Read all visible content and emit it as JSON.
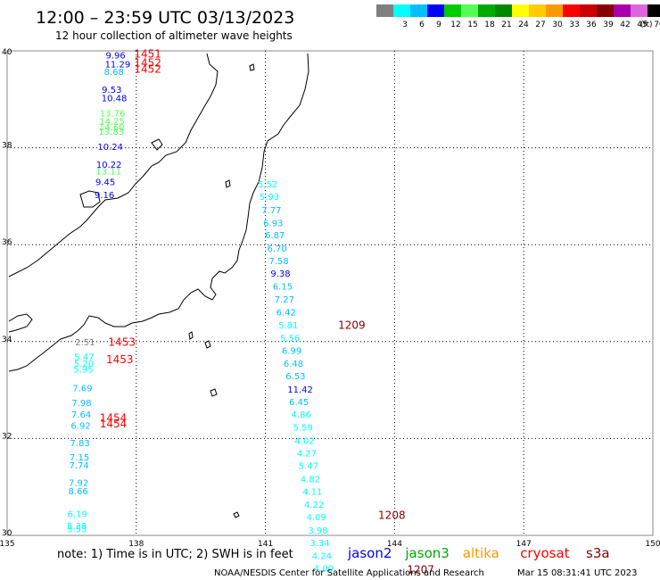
{
  "title": "12:00 – 23:59 UTC 03/13/2023",
  "subtitle": "12 hour collection of altimeter wave heights",
  "legend": {
    "unit": "(ft)",
    "bins": [
      {
        "label": "",
        "color": "#808080"
      },
      {
        "label": "3",
        "color": "#00ffff"
      },
      {
        "label": "6",
        "color": "#00bfff"
      },
      {
        "label": "9",
        "color": "#0000ff"
      },
      {
        "label": "12",
        "color": "#00cc00"
      },
      {
        "label": "15",
        "color": "#55ff55"
      },
      {
        "label": "18",
        "color": "#00aa00"
      },
      {
        "label": "21",
        "color": "#008800"
      },
      {
        "label": "24",
        "color": "#ffff00"
      },
      {
        "label": "27",
        "color": "#ffcc00"
      },
      {
        "label": "30",
        "color": "#ff9900"
      },
      {
        "label": "33",
        "color": "#ff0000"
      },
      {
        "label": "36",
        "color": "#cc0000"
      },
      {
        "label": "39",
        "color": "#880000"
      },
      {
        "label": "42",
        "color": "#aa00aa"
      },
      {
        "label": "45",
        "color": "#dd66dd"
      },
      {
        "label": "70",
        "color": "#000000"
      }
    ]
  },
  "axes": {
    "lon_labels": [
      "135",
      "138",
      "141",
      "144",
      "147",
      "150"
    ],
    "lat_labels": [
      "40",
      "38",
      "36",
      "34",
      "32",
      "30"
    ]
  },
  "observations": [
    {
      "lon": 137.29,
      "lat": 39.84,
      "swh": "9.96",
      "color": "#0000ff"
    },
    {
      "lon": 137.27,
      "lat": 39.66,
      "swh": "11.29",
      "color": "#0000ff"
    },
    {
      "lon": 137.25,
      "lat": 39.5,
      "swh": "8.68",
      "color": "#00bfff"
    },
    {
      "lon": 137.2,
      "lat": 39.13,
      "swh": "9.53",
      "color": "#0000ff"
    },
    {
      "lon": 137.19,
      "lat": 38.96,
      "swh": "10.48",
      "color": "#0000ff"
    },
    {
      "lon": 137.15,
      "lat": 38.65,
      "swh": "13.76",
      "color": "#55ff55"
    },
    {
      "lon": 137.14,
      "lat": 38.48,
      "swh": "14.25",
      "color": "#55ff55"
    },
    {
      "lon": 137.13,
      "lat": 38.36,
      "swh": "14.60",
      "color": "#55ff55"
    },
    {
      "lon": 137.12,
      "lat": 38.27,
      "swh": "13.83",
      "color": "#55ff55"
    },
    {
      "lon": 137.1,
      "lat": 37.96,
      "swh": "10.24",
      "color": "#0000ff"
    },
    {
      "lon": 137.07,
      "lat": 37.59,
      "swh": "10.22",
      "color": "#0000ff"
    },
    {
      "lon": 137.06,
      "lat": 37.45,
      "swh": "13.11",
      "color": "#55ff55"
    },
    {
      "lon": 137.05,
      "lat": 37.23,
      "swh": "9.45",
      "color": "#0000ff"
    },
    {
      "lon": 137.03,
      "lat": 36.96,
      "swh": "9.16",
      "color": "#0000ff"
    },
    {
      "lon": 140.82,
      "lat": 37.18,
      "swh": "5.52",
      "color": "#00ffff"
    },
    {
      "lon": 140.86,
      "lat": 36.92,
      "swh": "5.93",
      "color": "#00ffff"
    },
    {
      "lon": 140.91,
      "lat": 36.65,
      "swh": "7.77",
      "color": "#00bfff"
    },
    {
      "lon": 140.95,
      "lat": 36.38,
      "swh": "6.93",
      "color": "#00bfff"
    },
    {
      "lon": 140.99,
      "lat": 36.13,
      "swh": "6.87",
      "color": "#00bfff"
    },
    {
      "lon": 141.04,
      "lat": 35.86,
      "swh": "6.70",
      "color": "#00bfff"
    },
    {
      "lon": 141.08,
      "lat": 35.6,
      "swh": "7.58",
      "color": "#00bfff"
    },
    {
      "lon": 141.12,
      "lat": 35.34,
      "swh": "9.38",
      "color": "#0000ff"
    },
    {
      "lon": 141.17,
      "lat": 35.07,
      "swh": "6.15",
      "color": "#00bfff"
    },
    {
      "lon": 141.21,
      "lat": 34.81,
      "swh": "7.27",
      "color": "#00bfff"
    },
    {
      "lon": 141.25,
      "lat": 34.54,
      "swh": "6.42",
      "color": "#00bfff"
    },
    {
      "lon": 141.3,
      "lat": 34.27,
      "swh": "5.81",
      "color": "#00ffff"
    },
    {
      "lon": 141.34,
      "lat": 34.01,
      "swh": "5.56",
      "color": "#00ffff"
    },
    {
      "lon": 141.38,
      "lat": 33.75,
      "swh": "6.99",
      "color": "#00bfff"
    },
    {
      "lon": 141.42,
      "lat": 33.48,
      "swh": "6.48",
      "color": "#00bfff"
    },
    {
      "lon": 141.47,
      "lat": 33.22,
      "swh": "6.53",
      "color": "#00bfff"
    },
    {
      "lon": 141.51,
      "lat": 32.95,
      "swh": "11.42",
      "color": "#0000ff"
    },
    {
      "lon": 141.55,
      "lat": 32.69,
      "swh": "6.45",
      "color": "#00bfff"
    },
    {
      "lon": 141.6,
      "lat": 32.43,
      "swh": "4.86",
      "color": "#00ffff"
    },
    {
      "lon": 141.64,
      "lat": 32.16,
      "swh": "5.59",
      "color": "#00ffff"
    },
    {
      "lon": 141.68,
      "lat": 31.89,
      "swh": "4.02",
      "color": "#00ffff"
    },
    {
      "lon": 141.73,
      "lat": 31.63,
      "swh": "4.27",
      "color": "#00ffff"
    },
    {
      "lon": 141.77,
      "lat": 31.37,
      "swh": "5.47",
      "color": "#00ffff"
    },
    {
      "lon": 141.81,
      "lat": 31.1,
      "swh": "4.82",
      "color": "#00ffff"
    },
    {
      "lon": 141.86,
      "lat": 30.84,
      "swh": "4.11",
      "color": "#00ffff"
    },
    {
      "lon": 141.9,
      "lat": 30.57,
      "swh": "4.22",
      "color": "#00ffff"
    },
    {
      "lon": 141.95,
      "lat": 30.31,
      "swh": "4.09",
      "color": "#00ffff"
    },
    {
      "lon": 141.99,
      "lat": 30.04,
      "swh": "3.98",
      "color": "#00ffff"
    },
    {
      "lon": 142.03,
      "lat": 29.78,
      "swh": "3.34",
      "color": "#00ffff"
    },
    {
      "lon": 142.08,
      "lat": 29.51,
      "swh": "4.24",
      "color": "#00ffff"
    },
    {
      "lon": 142.12,
      "lat": 29.25,
      "swh": "4.00",
      "color": "#00ffff"
    },
    {
      "lon": 136.58,
      "lat": 33.92,
      "swh": "2.51",
      "color": "#808080"
    },
    {
      "lon": 136.56,
      "lat": 33.62,
      "swh": "5.47",
      "color": "#00ffff"
    },
    {
      "lon": 136.55,
      "lat": 33.48,
      "swh": "5.20",
      "color": "#00ffff"
    },
    {
      "lon": 136.54,
      "lat": 33.36,
      "swh": "5.95",
      "color": "#00ffff"
    },
    {
      "lon": 136.52,
      "lat": 32.97,
      "swh": "7.69",
      "color": "#00bfff"
    },
    {
      "lon": 136.5,
      "lat": 32.67,
      "swh": "7.98",
      "color": "#00bfff"
    },
    {
      "lon": 136.49,
      "lat": 32.43,
      "swh": "7.64",
      "color": "#00bfff"
    },
    {
      "lon": 136.48,
      "lat": 32.2,
      "swh": "6.92",
      "color": "#00bfff"
    },
    {
      "lon": 136.46,
      "lat": 31.84,
      "swh": "7.83",
      "color": "#00bfff"
    },
    {
      "lon": 136.45,
      "lat": 31.55,
      "swh": "7.15",
      "color": "#00bfff"
    },
    {
      "lon": 136.44,
      "lat": 31.38,
      "swh": "7.74",
      "color": "#00bfff"
    },
    {
      "lon": 136.43,
      "lat": 31.02,
      "swh": "7.92",
      "color": "#00bfff"
    },
    {
      "lon": 136.42,
      "lat": 30.85,
      "swh": "8.66",
      "color": "#00bfff"
    },
    {
      "lon": 136.4,
      "lat": 30.38,
      "swh": "6.19",
      "color": "#00ffff"
    },
    {
      "lon": 136.39,
      "lat": 30.13,
      "swh": "5.38",
      "color": "#00ffff"
    },
    {
      "lon": 136.39,
      "lat": 30.06,
      "swh": "5.53",
      "color": "#00ffff"
    }
  ],
  "time_labels": [
    {
      "lon": 137.95,
      "lat": 39.86,
      "text": "1451",
      "color": "#ff0000"
    },
    {
      "lon": 137.95,
      "lat": 39.68,
      "text": "1452",
      "color": "#ff0000"
    },
    {
      "lon": 137.95,
      "lat": 39.55,
      "text": "1452",
      "color": "#ff0000"
    },
    {
      "lon": 142.69,
      "lat": 34.26,
      "text": "1209",
      "color": "#880000"
    },
    {
      "lon": 143.62,
      "lat": 30.34,
      "text": "1208",
      "color": "#880000"
    },
    {
      "lon": 144.29,
      "lat": 29.22,
      "text": "1207",
      "color": "#880000"
    },
    {
      "lon": 137.35,
      "lat": 33.91,
      "text": "1453",
      "color": "#ff0000"
    },
    {
      "lon": 137.3,
      "lat": 33.55,
      "text": "1453",
      "color": "#ff0000"
    },
    {
      "lon": 137.15,
      "lat": 32.35,
      "text": "1454",
      "color": "#ff0000"
    },
    {
      "lon": 137.15,
      "lat": 32.23,
      "text": "1454",
      "color": "#ff0000"
    }
  ],
  "footer": {
    "note": "note:  1) Time is in UTC;  2) SWH is in feet",
    "satellites": [
      {
        "name": "jason2",
        "color": "#0000ff"
      },
      {
        "name": "jason3",
        "color": "#00aa00"
      },
      {
        "name": "altika",
        "color": "#ff9900"
      },
      {
        "name": "cryosat",
        "color": "#ff0000"
      },
      {
        "name": "s3a",
        "color": "#880000"
      }
    ],
    "credit": "NOAA/NESDIS Center for Satellite Applications and Research",
    "timestamp": "Mar 15 08:31:41 UTC 2023"
  }
}
